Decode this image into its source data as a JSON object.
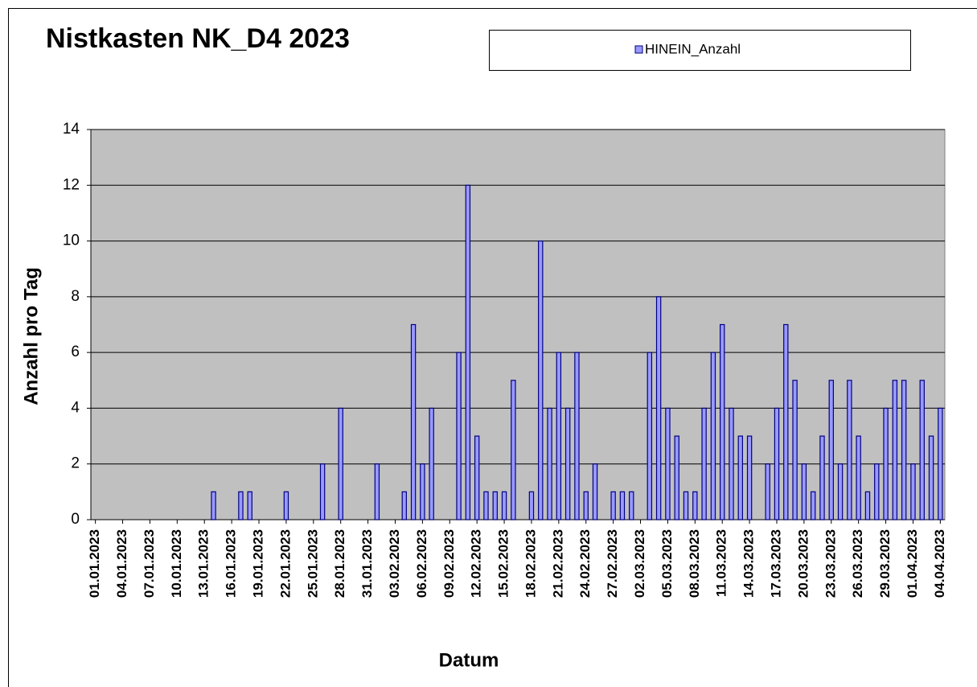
{
  "chart_data": {
    "type": "bar",
    "title": "Nistkasten  NK_D4 2023",
    "x_label": "Datum",
    "y_label": "Anzahl pro Tag",
    "categories": [
      "01.01.2023",
      null,
      null,
      "04.01.2023",
      null,
      null,
      "07.01.2023",
      null,
      null,
      "10.01.2023",
      null,
      null,
      "13.01.2023",
      null,
      null,
      "16.01.2023",
      null,
      null,
      "19.01.2023",
      null,
      null,
      "22.01.2023",
      null,
      null,
      "25.01.2023",
      null,
      null,
      "28.01.2023",
      null,
      null,
      "31.01.2023",
      null,
      null,
      "03.02.2023",
      null,
      null,
      "06.02.2023",
      null,
      null,
      "09.02.2023",
      null,
      null,
      "12.02.2023",
      null,
      null,
      "15.02.2023",
      null,
      null,
      "18.02.2023",
      null,
      null,
      "21.02.2023",
      null,
      null,
      "24.02.2023",
      null,
      null,
      "27.02.2023",
      null,
      null,
      "02.03.2023",
      null,
      null,
      "05.03.2023",
      null,
      null,
      "08.03.2023",
      null,
      null,
      "11.03.2023",
      null,
      null,
      "14.03.2023",
      null,
      null,
      "17.03.2023",
      null,
      null,
      "20.03.2023",
      null,
      null,
      "23.03.2023",
      null,
      null,
      "26.03.2023",
      null,
      null,
      "29.03.2023",
      null,
      null,
      "01.04.2023",
      null,
      null,
      "04.04.2023"
    ],
    "series": [
      {
        "name": "HINEIN_Anzahl",
        "color": "#9999ff",
        "values": [
          0,
          0,
          0,
          0,
          0,
          0,
          0,
          0,
          0,
          0,
          0,
          0,
          0,
          1,
          0,
          0,
          1,
          1,
          0,
          0,
          0,
          1,
          0,
          0,
          0,
          2,
          0,
          4,
          0,
          0,
          0,
          2,
          0,
          0,
          1,
          7,
          2,
          4,
          0,
          0,
          6,
          12,
          3,
          1,
          1,
          1,
          5,
          0,
          1,
          10,
          4,
          6,
          4,
          6,
          1,
          2,
          0,
          1,
          1,
          1,
          0,
          6,
          8,
          4,
          3,
          1,
          1,
          4,
          6,
          7,
          4,
          3,
          3,
          0,
          2,
          4,
          7,
          5,
          2,
          1,
          3,
          5,
          2,
          5,
          3,
          1,
          2,
          4,
          5,
          5,
          2,
          5,
          3,
          4
        ]
      }
    ],
    "ylim": [
      0,
      14
    ],
    "yticks": [
      0,
      2,
      4,
      6,
      8,
      10,
      12,
      14
    ],
    "grid": true,
    "legend": "top"
  }
}
